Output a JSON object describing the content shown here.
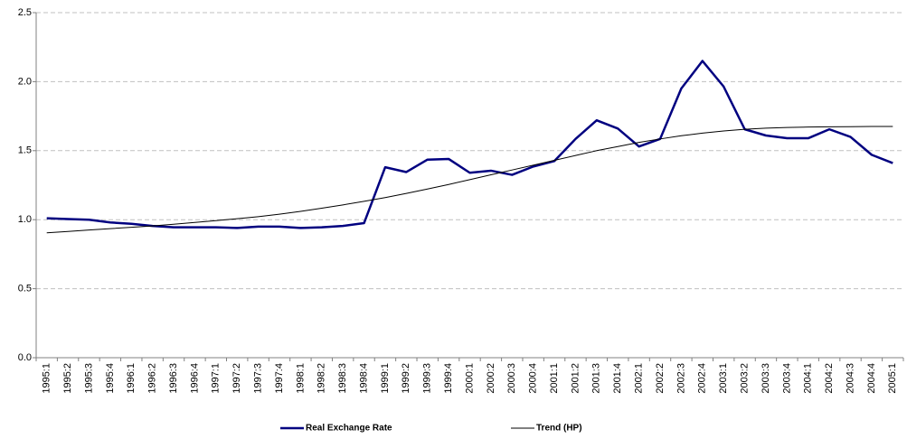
{
  "chart_data": {
    "type": "line",
    "categories": [
      "1995:1",
      "1995:2",
      "1995:3",
      "1995:4",
      "1996:1",
      "1996:2",
      "1996:3",
      "1996:4",
      "1997:1",
      "1997:2",
      "1997:3",
      "1997:4",
      "1998:1",
      "1998:2",
      "1998:3",
      "1998:4",
      "1999:1",
      "1999:2",
      "1999:3",
      "1999:4",
      "2000:1",
      "2000:2",
      "2000:3",
      "2000:4",
      "2001:1",
      "2001:2",
      "2001:3",
      "2001:4",
      "2002:1",
      "2002:2",
      "2002:3",
      "2002:4",
      "2003:1",
      "2003:2",
      "2003:3",
      "2003:4",
      "2004:1",
      "2004:2",
      "2004:3",
      "2004:4",
      "2005:1"
    ],
    "series": [
      {
        "name": "Real Exchange Rate",
        "color": "#000080",
        "width": 2.5,
        "values": [
          1.01,
          1.005,
          1.0,
          0.98,
          0.97,
          0.955,
          0.945,
          0.945,
          0.945,
          0.94,
          0.95,
          0.95,
          0.94,
          0.945,
          0.955,
          0.975,
          1.38,
          1.345,
          1.435,
          1.44,
          1.34,
          1.355,
          1.325,
          1.385,
          1.425,
          1.585,
          1.72,
          1.66,
          1.53,
          1.585,
          1.95,
          2.15,
          1.965,
          1.655,
          1.61,
          1.59,
          1.59,
          1.655,
          1.6,
          1.47,
          1.41
        ]
      },
      {
        "name": "Trend (HP)",
        "color": "#000000",
        "width": 1,
        "values": [
          0.905,
          0.915,
          0.925,
          0.935,
          0.945,
          0.955,
          0.967,
          0.98,
          0.993,
          1.007,
          1.022,
          1.04,
          1.06,
          1.083,
          1.107,
          1.133,
          1.16,
          1.19,
          1.222,
          1.255,
          1.29,
          1.325,
          1.36,
          1.395,
          1.43,
          1.465,
          1.5,
          1.53,
          1.56,
          1.585,
          1.608,
          1.627,
          1.643,
          1.655,
          1.663,
          1.668,
          1.671,
          1.673,
          1.674,
          1.675,
          1.675
        ]
      }
    ],
    "ylim": [
      0,
      2.5
    ],
    "yticks": [
      {
        "value": 0,
        "label": "0.0"
      },
      0.5,
      {
        "value": 1,
        "label": "1.0"
      },
      1.5,
      {
        "value": 2,
        "label": "2.0"
      },
      2.5
    ],
    "grid": true,
    "legend": "bottom"
  }
}
